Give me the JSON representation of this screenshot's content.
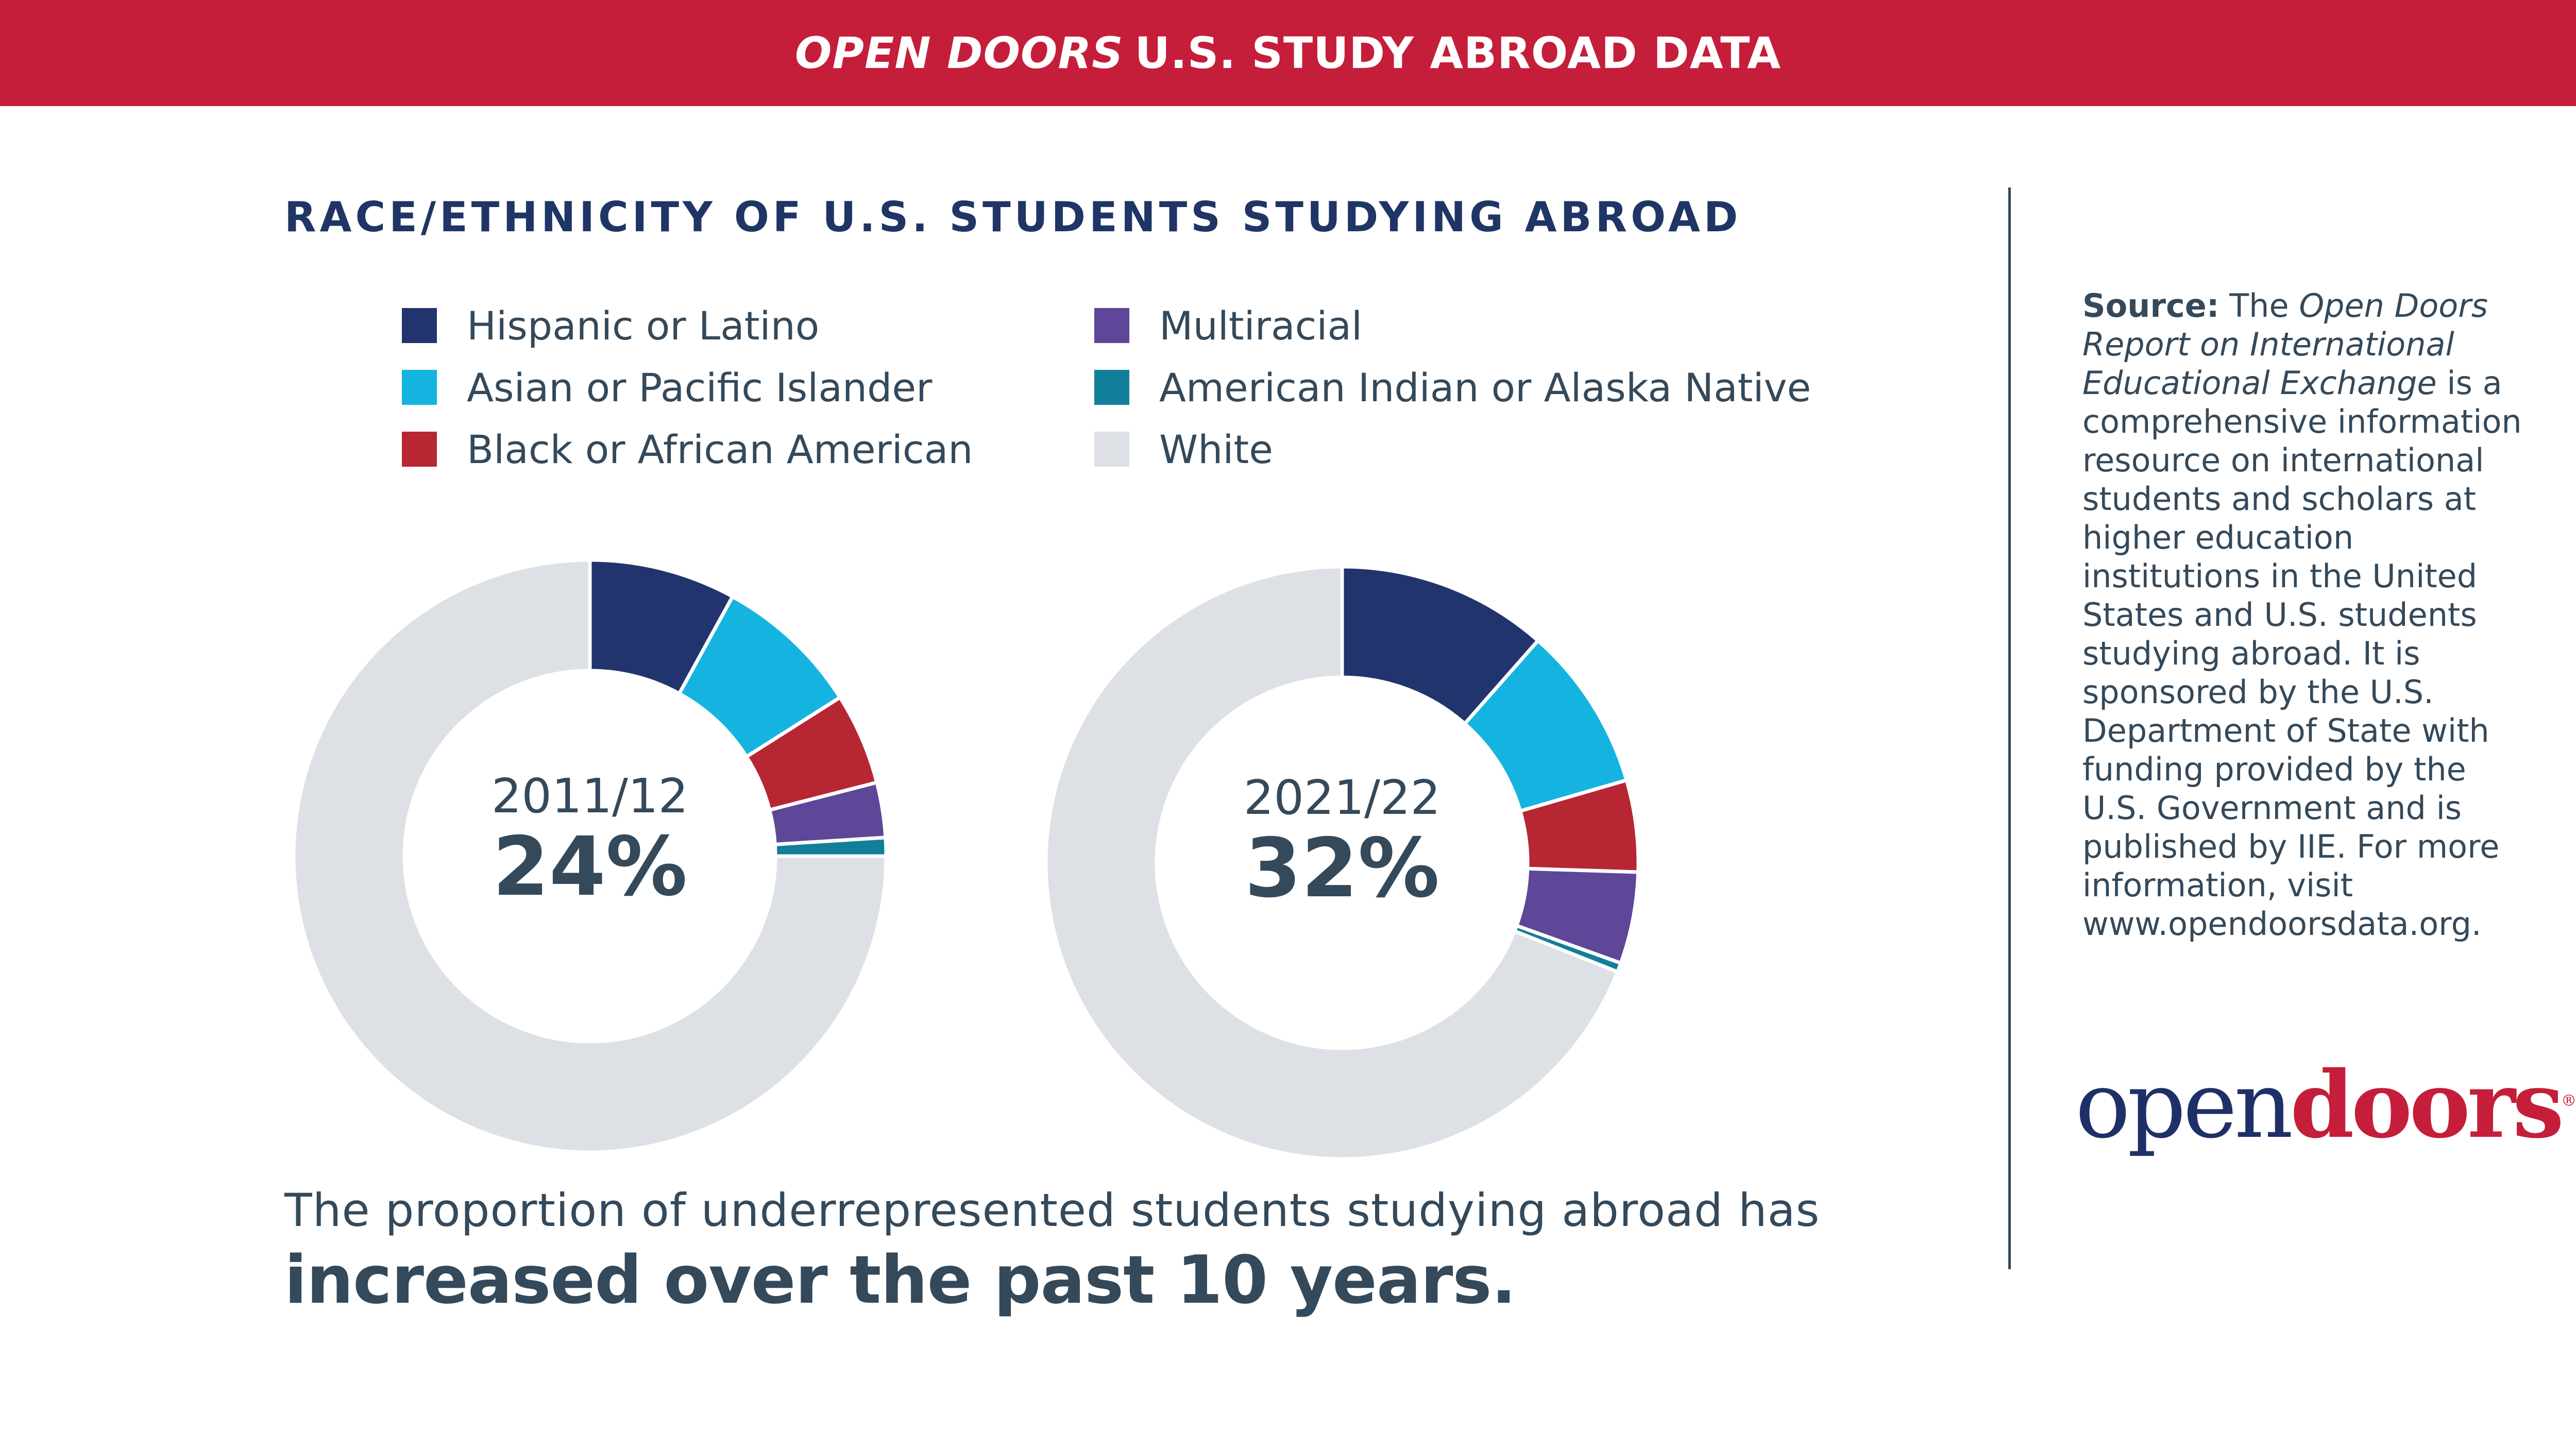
{
  "banner": {
    "title_em": "OPEN DOORS",
    "title_rest": "U.S. STUDY ABROAD DATA",
    "bg_color": "#c41e3a"
  },
  "chart_title": "RACE/ETHNICITY OF U.S. STUDENTS STUDYING ABROAD",
  "chart_data": [
    {
      "type": "pie",
      "style": "donut",
      "title": "",
      "center_label": "2011/12",
      "center_value": "24%",
      "categories": [
        "Hispanic or Latino",
        "Asian or Pacific Islander",
        "Black or African American",
        "Multiracial",
        "American Indian or Alaska Native",
        "White"
      ],
      "values": [
        8.0,
        8.0,
        5.0,
        3.0,
        1.0,
        75.0
      ],
      "unit": "percent",
      "start_angle": "12 o'clock",
      "direction": "clockwise"
    },
    {
      "type": "pie",
      "style": "donut",
      "title": "",
      "center_label": "2021/22",
      "center_value": "32%",
      "categories": [
        "Hispanic or Latino",
        "Asian or Pacific Islander",
        "Black or African American",
        "Multiracial",
        "American Indian or Alaska Native",
        "White"
      ],
      "values": [
        11.5,
        9.0,
        5.0,
        5.0,
        0.5,
        69.0
      ],
      "unit": "percent",
      "start_angle": "12 o'clock",
      "direction": "clockwise"
    }
  ],
  "legend": {
    "placement": "top",
    "items": [
      {
        "label": "Hispanic or Latino",
        "color": "#22346e"
      },
      {
        "label": "Asian or Pacific Islander",
        "color": "#15b4e0"
      },
      {
        "label": "Black or African American",
        "color": "#b72733"
      },
      {
        "label": "Multiracial",
        "color": "#5e4698"
      },
      {
        "label": "American Indian or Alaska Native",
        "color": "#117e9a"
      },
      {
        "label": "White",
        "color": "#dde1e5"
      }
    ]
  },
  "caption": {
    "line1": "The proportion of underrepresented students studying abroad has",
    "line2": "increased over the past 10 years."
  },
  "source": {
    "label": "Source:",
    "intro": "The",
    "report_title": "Open Doors Report on International Educational Exchange",
    "body": "is a comprehensive information resource on international students and scholars at higher education institutions in the United States and U.S. students studying abroad. It is sponsored by the U.S. Department of State with funding provided by the U.S. Government and is published by IIE. For more information, visit www.opendoorsdata.org."
  },
  "logo": {
    "part1": "open",
    "part2": "doors",
    "reg": "®",
    "color_open": "#1f2f68",
    "color_doors": "#c41e3a"
  }
}
